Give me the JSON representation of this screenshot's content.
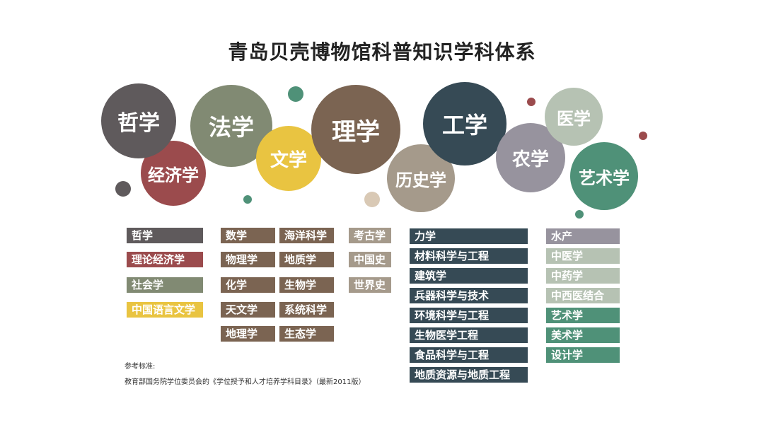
{
  "title": "青岛贝壳博物馆科普知识学科体系",
  "colors": {
    "philosophy": "#5f5a5c",
    "economics": "#9b4b4d",
    "law": "#818a73",
    "literature": "#e9c441",
    "science": "#7b6452",
    "history": "#a59a8b",
    "engineering": "#364a55",
    "agriculture": "#97939e",
    "medicine": "#b6c2b3",
    "arts": "#4f9178"
  },
  "bubbles": {
    "philosophy": "哲学",
    "economics": "经济学",
    "law": "法学",
    "literature": "文学",
    "science": "理学",
    "history": "历史学",
    "engineering": "工学",
    "agriculture": "农学",
    "medicine": "医学",
    "arts": "艺术学"
  },
  "col1": [
    "哲学",
    "理论经济学",
    "社会学",
    "中国语言文学"
  ],
  "col2a": [
    "数学",
    "物理学",
    "化学",
    "天文学",
    "地理学"
  ],
  "col2b": [
    "海洋科学",
    "地质学",
    "生物学",
    "系统科学",
    "生态学"
  ],
  "col3": [
    "考古学",
    "中国史",
    "世界史"
  ],
  "col4": [
    "力学",
    "材料科学与工程",
    "建筑学",
    "兵器科学与技术",
    "环境科学与工程",
    "生物医学工程",
    "食品科学与工程",
    "地质资源与地质工程"
  ],
  "col5": [
    "水产",
    "中医学",
    "中药学",
    "中西医结合",
    "艺术学",
    "美术学",
    "设计学"
  ],
  "note": {
    "line1": "参考标准:",
    "line2": "教育部国务院学位委员会的《学位授予和人才培养学科目录》（最新2011版）"
  }
}
